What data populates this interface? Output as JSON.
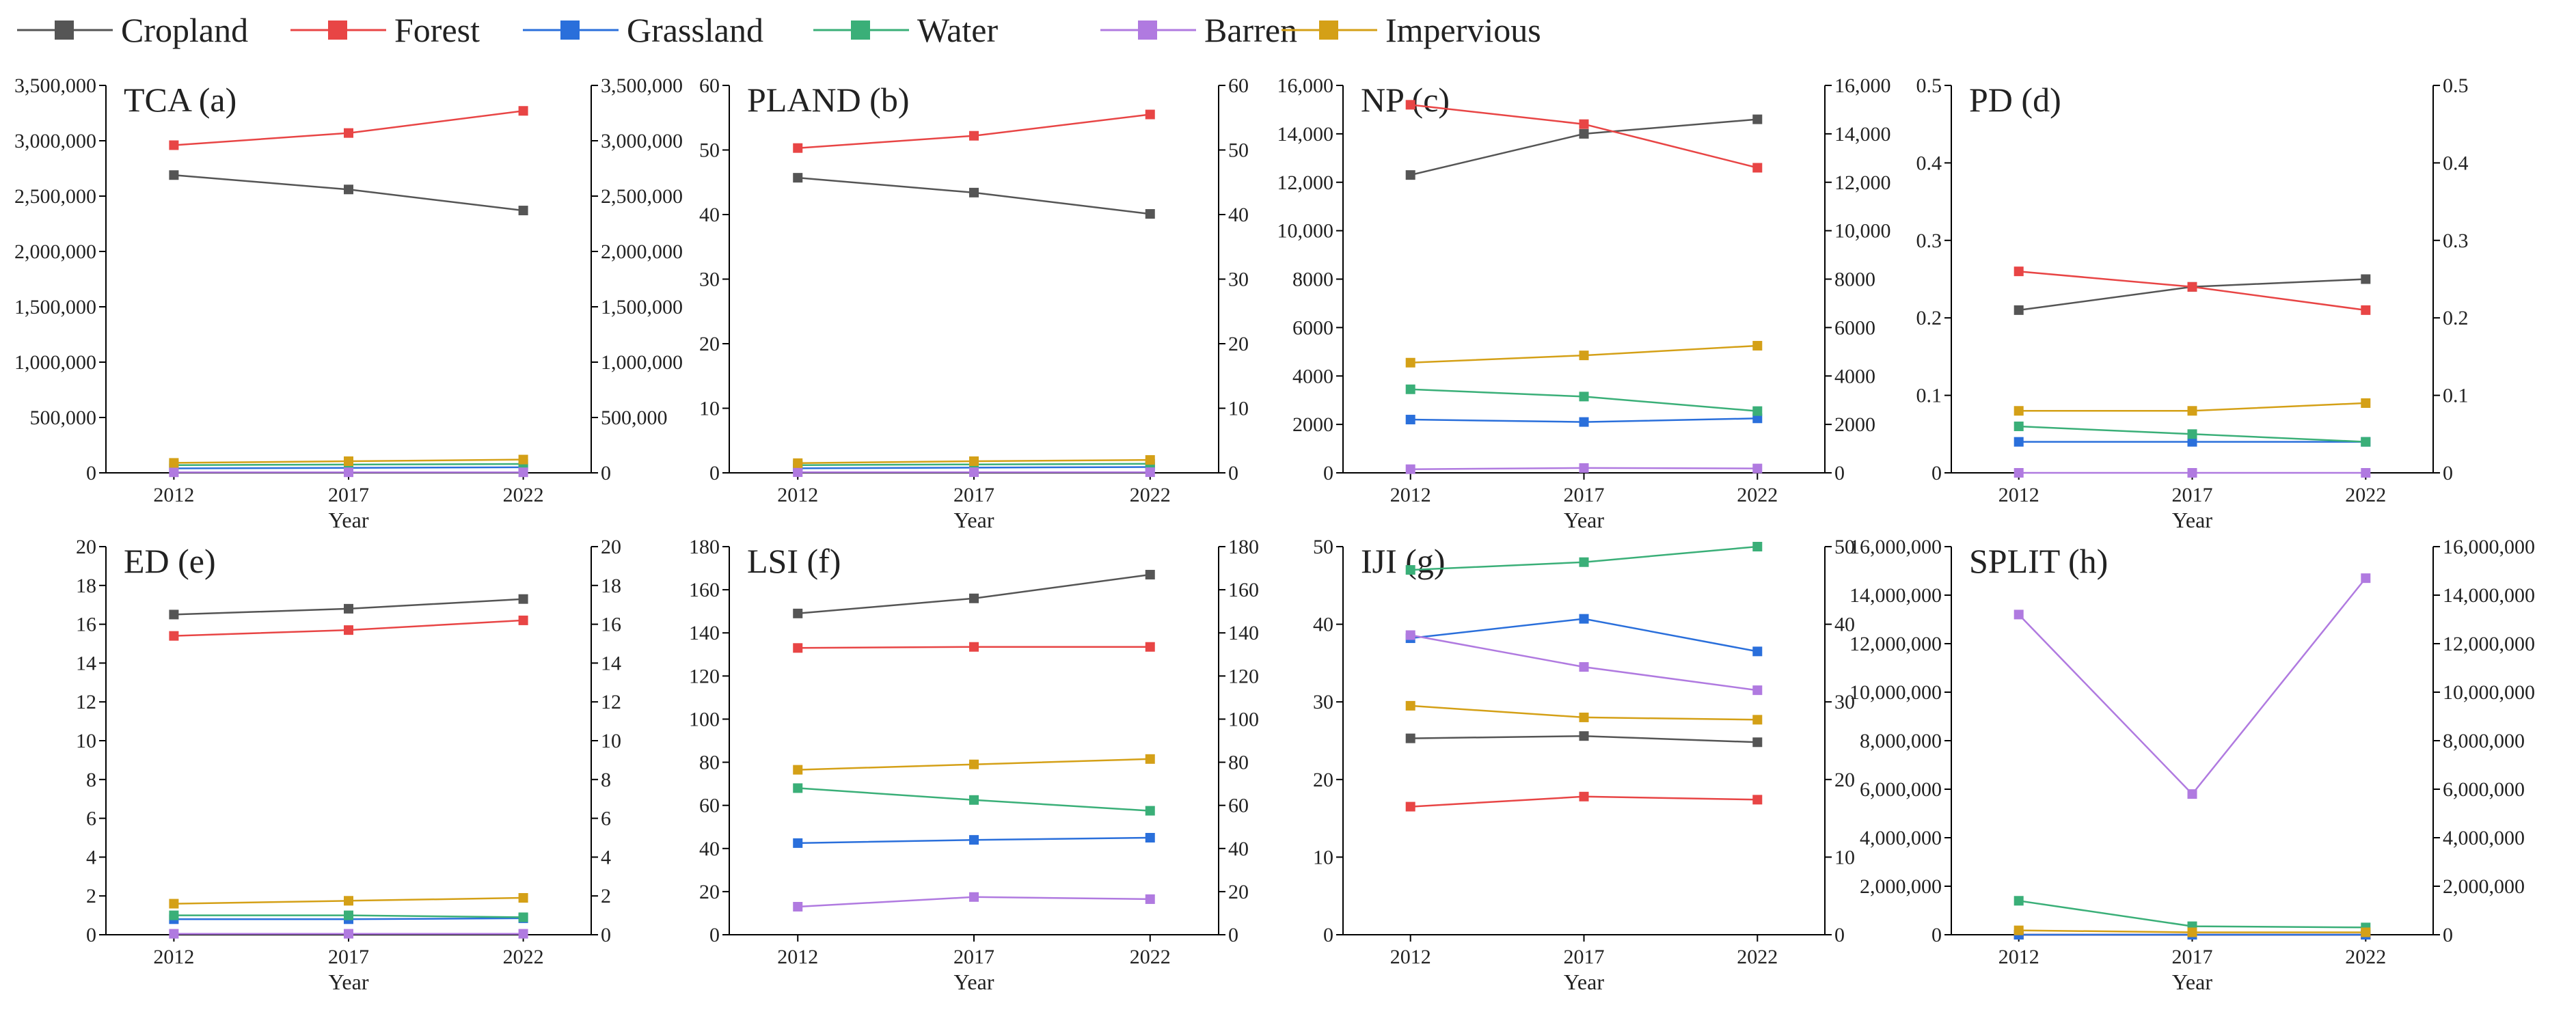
{
  "legend": [
    {
      "name": "Cropland",
      "color": "#555555"
    },
    {
      "name": "Forest",
      "color": "#e84545"
    },
    {
      "name": "Grassland",
      "color": "#2a6fdb"
    },
    {
      "name": "Water",
      "color": "#3aaf78"
    },
    {
      "name": "Barren",
      "color": "#b07ae0"
    },
    {
      "name": "Impervious",
      "color": "#d4a017"
    }
  ],
  "chart_data": [
    {
      "type": "line",
      "title": "TCA (a)",
      "xlabel": "Year",
      "categories": [
        "2012",
        "2017",
        "2022"
      ],
      "ylim": [
        0,
        3500000
      ],
      "yticks": [
        0,
        500000,
        1000000,
        1500000,
        2000000,
        2500000,
        3000000,
        3500000
      ],
      "ytick_labels": [
        "0",
        "500,000",
        "1,000,000",
        "1,500,000",
        "2,000,000",
        "2,500,000",
        "3,000,000",
        "3,500,000"
      ],
      "series": [
        {
          "name": "Cropland",
          "values": [
            2690000,
            2560000,
            2370000
          ]
        },
        {
          "name": "Forest",
          "values": [
            2960000,
            3070000,
            3270000
          ]
        },
        {
          "name": "Grassland",
          "values": [
            40000,
            45000,
            50000
          ]
        },
        {
          "name": "Water",
          "values": [
            70000,
            75000,
            80000
          ]
        },
        {
          "name": "Barren",
          "values": [
            5000,
            5000,
            5000
          ]
        },
        {
          "name": "Impervious",
          "values": [
            90000,
            105000,
            120000
          ]
        }
      ]
    },
    {
      "type": "line",
      "title": "PLAND (b)",
      "xlabel": "Year",
      "categories": [
        "2012",
        "2017",
        "2022"
      ],
      "ylim": [
        0,
        60
      ],
      "yticks": [
        0,
        10,
        20,
        30,
        40,
        50,
        60
      ],
      "ytick_labels": [
        "0",
        "10",
        "20",
        "30",
        "40",
        "50",
        "60"
      ],
      "series": [
        {
          "name": "Cropland",
          "values": [
            45.7,
            43.4,
            40.1
          ]
        },
        {
          "name": "Forest",
          "values": [
            50.3,
            52.2,
            55.5
          ]
        },
        {
          "name": "Grassland",
          "values": [
            0.7,
            0.8,
            0.9
          ]
        },
        {
          "name": "Water",
          "values": [
            1.2,
            1.3,
            1.4
          ]
        },
        {
          "name": "Barren",
          "values": [
            0.1,
            0.1,
            0.1
          ]
        },
        {
          "name": "Impervious",
          "values": [
            1.5,
            1.8,
            2.0
          ]
        }
      ]
    },
    {
      "type": "line",
      "title": "NP (c)",
      "xlabel": "Year",
      "categories": [
        "2012",
        "2017",
        "2022"
      ],
      "ylim": [
        0,
        16000
      ],
      "yticks": [
        0,
        2000,
        4000,
        6000,
        8000,
        10000,
        12000,
        14000,
        16000
      ],
      "ytick_labels": [
        "0",
        "2000",
        "4000",
        "6000",
        "8000",
        "10,000",
        "12,000",
        "14,000",
        "16,000"
      ],
      "ytick_labels_right": [
        "0",
        "2000",
        "4000",
        "6000",
        "8000",
        "10,000",
        "12,000",
        "14,000",
        "16,000"
      ],
      "series": [
        {
          "name": "Cropland",
          "values": [
            12300,
            14000,
            14600
          ]
        },
        {
          "name": "Forest",
          "values": [
            15200,
            14400,
            12600
          ]
        },
        {
          "name": "Grassland",
          "values": [
            2200,
            2100,
            2250
          ]
        },
        {
          "name": "Water",
          "values": [
            3450,
            3150,
            2550
          ]
        },
        {
          "name": "Barren",
          "values": [
            150,
            200,
            180
          ]
        },
        {
          "name": "Impervious",
          "values": [
            4550,
            4850,
            5250
          ]
        }
      ]
    },
    {
      "type": "line",
      "title": "PD (d)",
      "xlabel": "Year",
      "categories": [
        "2012",
        "2017",
        "2022"
      ],
      "ylim": [
        0,
        0.5
      ],
      "yticks": [
        0,
        0.1,
        0.2,
        0.3,
        0.4,
        0.5
      ],
      "ytick_labels": [
        "0",
        "0.1",
        "0.2",
        "0.3",
        "0.4",
        "0.5"
      ],
      "series": [
        {
          "name": "Cropland",
          "values": [
            0.21,
            0.24,
            0.25
          ]
        },
        {
          "name": "Forest",
          "values": [
            0.26,
            0.24,
            0.21
          ]
        },
        {
          "name": "Grassland",
          "values": [
            0.04,
            0.04,
            0.04
          ]
        },
        {
          "name": "Water",
          "values": [
            0.06,
            0.05,
            0.04
          ]
        },
        {
          "name": "Barren",
          "values": [
            0.0,
            0.0,
            0.0
          ]
        },
        {
          "name": "Impervious",
          "values": [
            0.08,
            0.08,
            0.09
          ]
        }
      ]
    },
    {
      "type": "line",
      "title": "ED (e)",
      "xlabel": "Year",
      "categories": [
        "2012",
        "2017",
        "2022"
      ],
      "ylim": [
        0,
        20
      ],
      "yticks": [
        0,
        2,
        4,
        6,
        8,
        10,
        12,
        14,
        16,
        18,
        20
      ],
      "ytick_labels": [
        "0",
        "2",
        "4",
        "6",
        "8",
        "10",
        "12",
        "14",
        "16",
        "18",
        "20"
      ],
      "series": [
        {
          "name": "Cropland",
          "values": [
            16.5,
            16.8,
            17.3
          ]
        },
        {
          "name": "Forest",
          "values": [
            15.4,
            15.7,
            16.2
          ]
        },
        {
          "name": "Grassland",
          "values": [
            0.8,
            0.8,
            0.85
          ]
        },
        {
          "name": "Water",
          "values": [
            1.0,
            1.0,
            0.9
          ]
        },
        {
          "name": "Barren",
          "values": [
            0.05,
            0.05,
            0.05
          ]
        },
        {
          "name": "Impervious",
          "values": [
            1.6,
            1.75,
            1.9
          ]
        }
      ]
    },
    {
      "type": "line",
      "title": "LSI (f)",
      "xlabel": "Year",
      "categories": [
        "2012",
        "2017",
        "2022"
      ],
      "ylim": [
        0,
        180
      ],
      "yticks": [
        0,
        20,
        40,
        60,
        80,
        100,
        120,
        140,
        160,
        180
      ],
      "ytick_labels": [
        "0",
        "20",
        "40",
        "60",
        "80",
        "100",
        "120",
        "140",
        "160",
        "180"
      ],
      "series": [
        {
          "name": "Cropland",
          "values": [
            149,
            156,
            167
          ]
        },
        {
          "name": "Forest",
          "values": [
            133,
            133.5,
            133.5
          ]
        },
        {
          "name": "Grassland",
          "values": [
            42.5,
            44,
            45
          ]
        },
        {
          "name": "Water",
          "values": [
            68,
            62.5,
            57.5
          ]
        },
        {
          "name": "Barren",
          "values": [
            13,
            17.5,
            16.5
          ]
        },
        {
          "name": "Impervious",
          "values": [
            76.5,
            79,
            81.5
          ]
        }
      ]
    },
    {
      "type": "line",
      "title": "IJI (g)",
      "xlabel": "Year",
      "categories": [
        "2012",
        "2017",
        "2022"
      ],
      "ylim": [
        0,
        50
      ],
      "yticks": [
        0,
        10,
        20,
        30,
        40,
        50
      ],
      "ytick_labels": [
        "0",
        "10",
        "20",
        "30",
        "40",
        "50"
      ],
      "ytick_labels_right": [
        "0",
        "10",
        "20",
        "30",
        "40",
        "50"
      ],
      "series": [
        {
          "name": "Cropland",
          "values": [
            25.3,
            25.6,
            24.8
          ]
        },
        {
          "name": "Forest",
          "values": [
            16.5,
            17.8,
            17.4
          ]
        },
        {
          "name": "Grassland",
          "values": [
            38.2,
            40.7,
            36.5
          ]
        },
        {
          "name": "Water",
          "values": [
            47,
            48,
            50
          ]
        },
        {
          "name": "Barren",
          "values": [
            38.6,
            34.5,
            31.5
          ]
        },
        {
          "name": "Impervious",
          "values": [
            29.5,
            28,
            27.7
          ]
        }
      ]
    },
    {
      "type": "line",
      "title": "SPLIT (h)",
      "xlabel": "Year",
      "categories": [
        "2012",
        "2017",
        "2022"
      ],
      "ylim": [
        0,
        16000000
      ],
      "yticks": [
        0,
        2000000,
        4000000,
        6000000,
        8000000,
        10000000,
        12000000,
        14000000,
        16000000
      ],
      "ytick_labels": [
        "0",
        "2,000,000",
        "4,000,000",
        "6,000,000",
        "8,000,000",
        "10,000,000",
        "12,000,000",
        "14,000,000",
        "16,000,000"
      ],
      "series": [
        {
          "name": "Cropland",
          "values": [
            10,
            10,
            10
          ]
        },
        {
          "name": "Forest",
          "values": [
            10,
            10,
            10
          ]
        },
        {
          "name": "Grassland",
          "values": [
            20,
            20,
            20
          ]
        },
        {
          "name": "Water",
          "values": [
            1400000,
            350000,
            300000
          ]
        },
        {
          "name": "Barren",
          "values": [
            13200000,
            5800000,
            14700000
          ]
        },
        {
          "name": "Impervious",
          "values": [
            180000,
            100000,
            100000
          ]
        }
      ]
    }
  ]
}
